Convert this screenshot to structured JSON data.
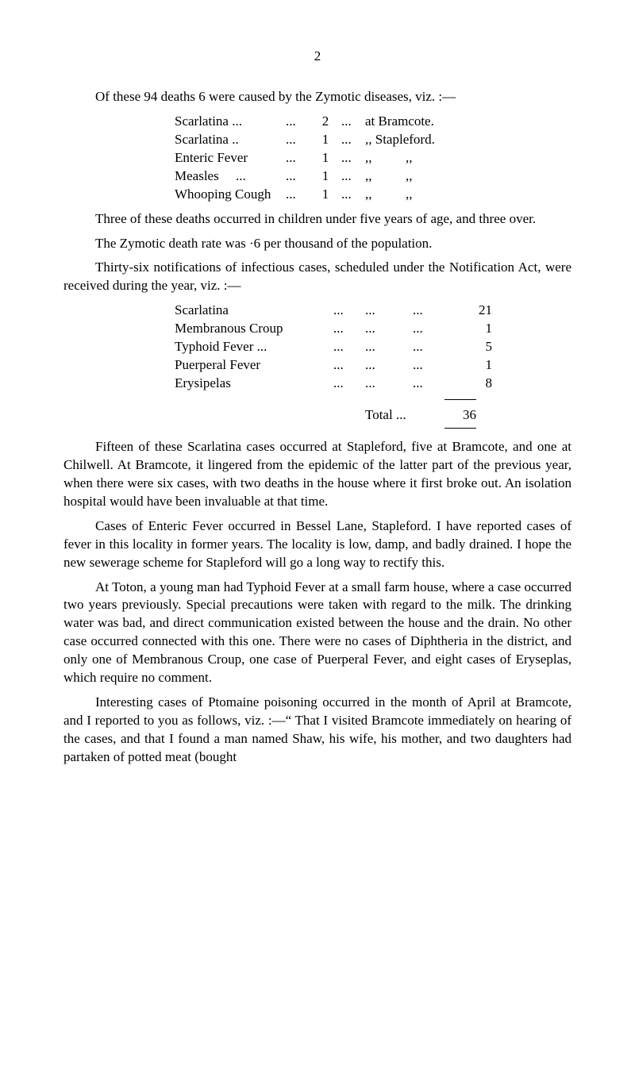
{
  "page_number": "2",
  "intro_line": "Of these 94 deaths 6 were caused by the Zymotic diseases, viz. :—",
  "death_list": [
    {
      "name": "Scarlatina ...",
      "dots": "...",
      "num": "2",
      "dots2": "...",
      "loc": "at Bramcote."
    },
    {
      "name": "Scarlatina ..",
      "dots": "...",
      "num": "1",
      "dots2": "...",
      "loc": ",, Stapleford."
    },
    {
      "name": "Enteric Fever",
      "dots": "...",
      "num": "1",
      "dots2": "...",
      "loc": ",,          ,,"
    },
    {
      "name": "Measles     ...",
      "dots": "...",
      "num": "1",
      "dots2": "...",
      "loc": ",,          ,,"
    },
    {
      "name": "Whooping Cough",
      "dots": "...",
      "num": "1",
      "dots2": "...",
      "loc": ",,          ,,"
    }
  ],
  "para_three": "Three of these deaths occurred in children under five years of age, and three over.",
  "para_zym": "The Zymotic death rate was ·6 per thousand of the population.",
  "para_thirty": "Thirty-six notifications of infectious cases, scheduled under the Notification Act, were received during the year, viz. :—",
  "notif_list": [
    {
      "name": "Scarlatina",
      "d1": "...",
      "d2": "...",
      "d3": "...",
      "num": "21"
    },
    {
      "name": "Membranous Croup",
      "d1": "...",
      "d2": "...",
      "d3": "...",
      "num": "1"
    },
    {
      "name": "Typhoid Fever ...",
      "d1": "...",
      "d2": "...",
      "d3": "...",
      "num": "5"
    },
    {
      "name": "Puerperal Fever",
      "d1": "...",
      "d2": "...",
      "d3": "...",
      "num": "1"
    },
    {
      "name": "Erysipelas",
      "d1": "...",
      "d2": "...",
      "d3": "...",
      "num": "8"
    }
  ],
  "total_label": "Total   ...",
  "total_value": "36",
  "para_fifteen": "Fifteen of these Scarlatina cases occurred at Stapleford, five at Bramcote, and one at Chilwell. At Bramcote, it lingered from the epidemic of the latter part of the previous year, when there were six cases, with two deaths in the house where it first broke out. An isolation hospital would have been invaluable at that time.",
  "para_cases": "Cases of Enteric Fever occurred in Bessel Lane, Stapleford. I have reported cases of fever in this locality in former years. The locality is low, damp, and badly drained. I hope the new sewerage scheme for Stapleford will go a long way to rectify this.",
  "para_toton": "At Toton, a young man had Typhoid Fever at a small farm house, where a case occurred two years previously. Special precautions were taken with regard to the milk. The drinking water was bad, and direct communication existed between the house and the drain. No other case occurred connected with this one. There were no cases of Diphtheria in the district, and only one of Membranous Croup, one case of Puerperal Fever, and eight cases of Eryseplas, which require no comment.",
  "para_interest": "Interesting cases of Ptomaine poisoning occurred in the month of April at Bramcote, and I reported to you as follows, viz. :—“ That I visited Bramcote immediately on hearing of the cases, and that I found a man named Shaw, his wife, his mother, and two daughters had partaken of potted meat (bought"
}
